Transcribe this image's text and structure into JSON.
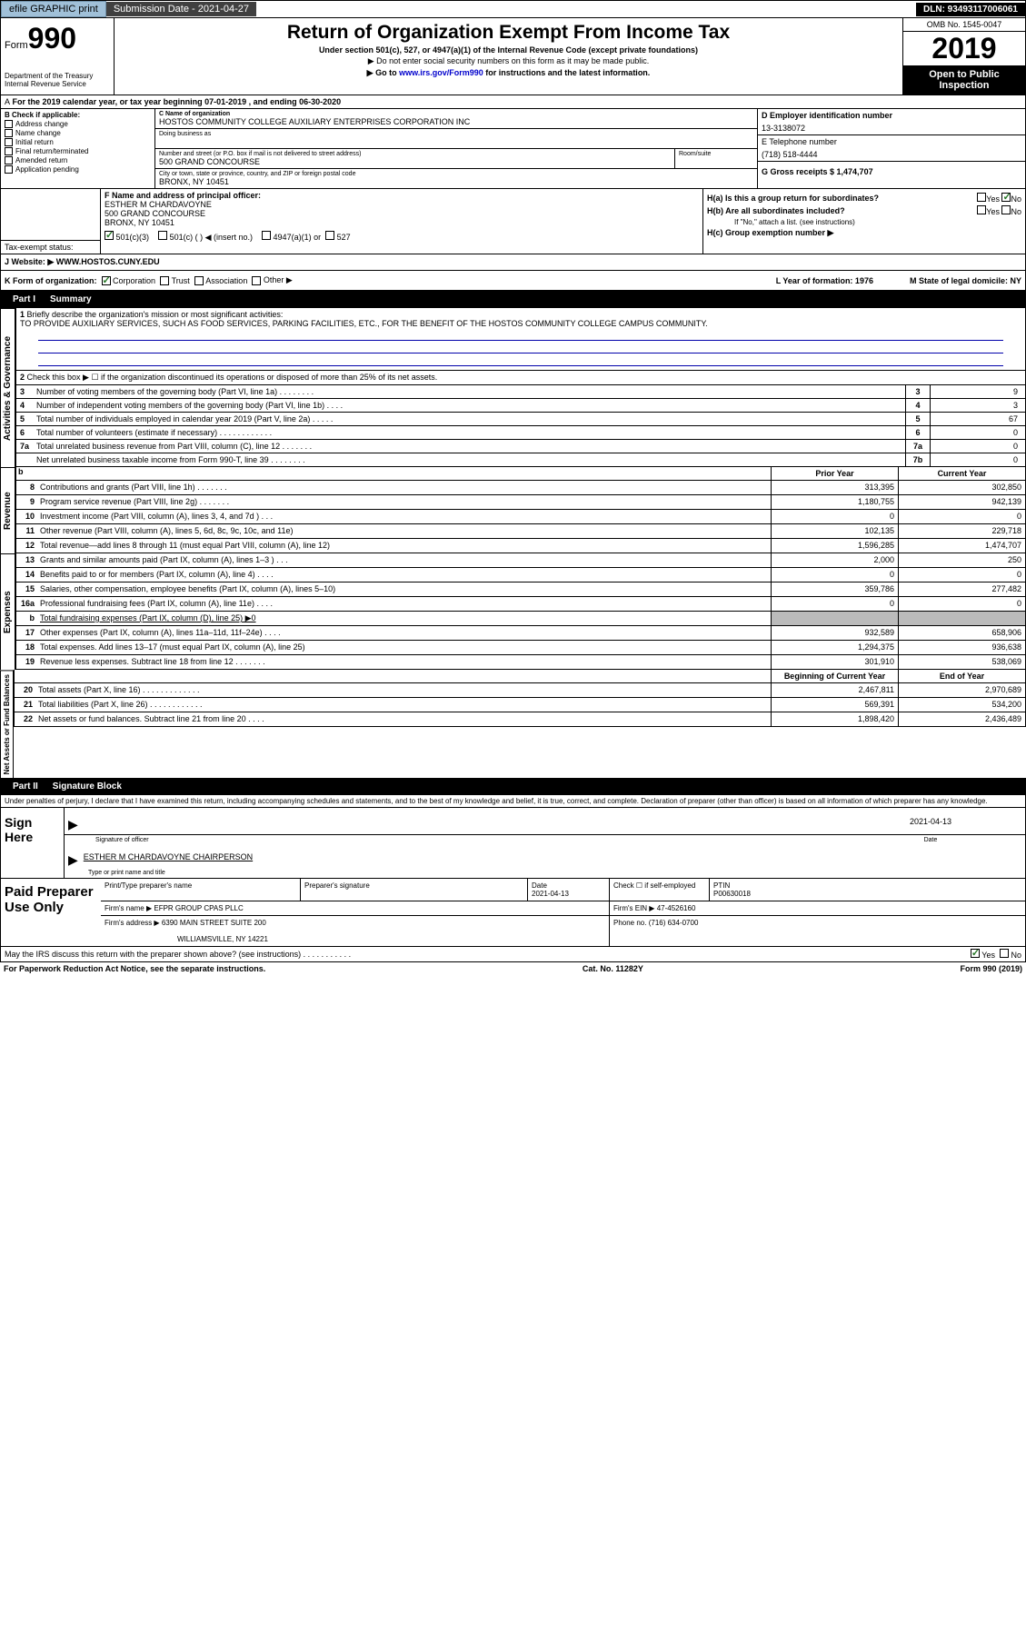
{
  "top_bar": {
    "efile": "efile GRAPHIC print",
    "submission": "Submission Date - 2021-04-27",
    "dln": "DLN: 93493117006061"
  },
  "header": {
    "form_label": "Form",
    "form_num": "990",
    "dept": "Department of the Treasury\nInternal Revenue Service",
    "title": "Return of Organization Exempt From Income Tax",
    "sub1": "Under section 501(c), 527, or 4947(a)(1) of the Internal Revenue Code (except private foundations)",
    "sub2": "▶ Do not enter social security numbers on this form as it may be made public.",
    "sub3_pre": "▶ Go to ",
    "sub3_link": "www.irs.gov/Form990",
    "sub3_post": " for instructions and the latest information.",
    "omb": "OMB No. 1545-0047",
    "year": "2019",
    "open": "Open to Public Inspection"
  },
  "dates": "For the 2019 calendar year, or tax year beginning 07-01-2019    , and ending 06-30-2020",
  "section_b": {
    "title": "B Check if applicable:",
    "items": [
      "Address change",
      "Name change",
      "Initial return",
      "Final return/terminated",
      "Amended return",
      "Application pending"
    ]
  },
  "section_c": {
    "name_lbl": "C Name of organization",
    "name": "HOSTOS COMMUNITY COLLEGE AUXILIARY ENTERPRISES CORPORATION INC",
    "dba_lbl": "Doing business as",
    "addr_lbl": "Number and street (or P.O. box if mail is not delivered to street address)",
    "room_lbl": "Room/suite",
    "addr": "500 GRAND CONCOURSE",
    "city_lbl": "City or town, state or province, country, and ZIP or foreign postal code",
    "city": "BRONX, NY  10451"
  },
  "section_d": {
    "ein_lbl": "D Employer identification number",
    "ein": "13-3138072",
    "tel_lbl": "E Telephone number",
    "tel": "(718) 518-4444",
    "gross_lbl": "G Gross receipts $ 1,474,707"
  },
  "section_f": {
    "lbl": "F  Name and address of principal officer:",
    "name": "ESTHER M CHARDAVOYNE",
    "addr": "500 GRAND CONCOURSE",
    "city": "BRONX, NY  10451"
  },
  "section_h": {
    "ha": "H(a)  Is this a group return for subordinates?",
    "hb": "H(b)  Are all subordinates included?",
    "hb_note": "If \"No,\" attach a list. (see instructions)",
    "hc": "H(c)  Group exemption number ▶",
    "yes": "Yes",
    "no": "No"
  },
  "tax_exempt": {
    "lbl": "Tax-exempt status:",
    "opt1": "501(c)(3)",
    "opt2": "501(c) (  ) ◀ (insert no.)",
    "opt3": "4947(a)(1) or",
    "opt4": "527"
  },
  "section_j": {
    "lbl": "J   Website: ▶",
    "val": "WWW.HOSTOS.CUNY.EDU"
  },
  "section_k": {
    "lbl": "K Form of organization:",
    "opts": [
      "Corporation",
      "Trust",
      "Association",
      "Other ▶"
    ],
    "l_lbl": "L Year of formation: 1976",
    "m_lbl": "M State of legal domicile: NY"
  },
  "part1": {
    "hdr": "Part I",
    "title": "Summary",
    "side1": "Activities & Governance",
    "side2": "Revenue",
    "side3": "Expenses",
    "side4": "Net Assets or Fund Balances",
    "q1": "Briefly describe the organization's mission or most significant activities:",
    "q1_ans": "TO PROVIDE AUXILIARY SERVICES, SUCH AS FOOD SERVICES, PARKING FACILITIES, ETC., FOR THE BENEFIT OF THE HOSTOS COMMUNITY COLLEGE CAMPUS COMMUNITY.",
    "q2": "Check this box ▶ ☐  if the organization discontinued its operations or disposed of more than 25% of its net assets.",
    "rows": [
      {
        "n": "3",
        "t": "Number of voting members of the governing body (Part VI, line 1a)   .    .    .    .    .    .    .    .",
        "b": "3",
        "v": "9"
      },
      {
        "n": "4",
        "t": "Number of independent voting members of the governing body (Part VI, line 1b)   .    .    .    .",
        "b": "4",
        "v": "3"
      },
      {
        "n": "5",
        "t": "Total number of individuals employed in calendar year 2019 (Part V, line 2a)   .    .    .    .    .",
        "b": "5",
        "v": "67"
      },
      {
        "n": "6",
        "t": "Total number of volunteers (estimate if necessary)    .    .    .    .    .    .    .    .    .    .    .    .",
        "b": "6",
        "v": "0"
      },
      {
        "n": "7a",
        "t": "Total unrelated business revenue from Part VIII, column (C), line 12   .    .    .    .    .    .    .",
        "b": "7a",
        "v": "0"
      },
      {
        "n": "",
        "t": "Net unrelated business taxable income from Form 990-T, line 39   .    .    .    .    .    .    .    .",
        "b": "7b",
        "v": "0"
      }
    ],
    "py_hdr": "Prior Year",
    "cy_hdr": "Current Year",
    "rev_rows": [
      {
        "n": "8",
        "t": "Contributions and grants (Part VIII, line 1h)   .    .    .    .    .    .    .",
        "py": "313,395",
        "cy": "302,850"
      },
      {
        "n": "9",
        "t": "Program service revenue (Part VIII, line 2g)   .    .    .    .    .    .    .",
        "py": "1,180,755",
        "cy": "942,139"
      },
      {
        "n": "10",
        "t": "Investment income (Part VIII, column (A), lines 3, 4, and 7d )   .    .    .",
        "py": "0",
        "cy": "0"
      },
      {
        "n": "11",
        "t": "Other revenue (Part VIII, column (A), lines 5, 6d, 8c, 9c, 10c, and 11e)",
        "py": "102,135",
        "cy": "229,718"
      },
      {
        "n": "12",
        "t": "Total revenue—add lines 8 through 11 (must equal Part VIII, column (A), line 12)",
        "py": "1,596,285",
        "cy": "1,474,707"
      }
    ],
    "exp_rows": [
      {
        "n": "13",
        "t": "Grants and similar amounts paid (Part IX, column (A), lines 1–3 )  .    .    .",
        "py": "2,000",
        "cy": "250"
      },
      {
        "n": "14",
        "t": "Benefits paid to or for members (Part IX, column (A), line 4)   .    .    .    .",
        "py": "0",
        "cy": "0"
      },
      {
        "n": "15",
        "t": "Salaries, other compensation, employee benefits (Part IX, column (A), lines 5–10)",
        "py": "359,786",
        "cy": "277,482"
      },
      {
        "n": "16a",
        "t": "Professional fundraising fees (Part IX, column (A), line 11e)   .    .    .    .",
        "py": "0",
        "cy": "0"
      },
      {
        "n": "b",
        "t": "Total fundraising expenses (Part IX, column (D), line 25) ▶0",
        "py": "",
        "cy": "",
        "shade": true
      },
      {
        "n": "17",
        "t": "Other expenses (Part IX, column (A), lines 11a–11d, 11f–24e)   .    .    .    .",
        "py": "932,589",
        "cy": "658,906"
      },
      {
        "n": "18",
        "t": "Total expenses. Add lines 13–17 (must equal Part IX, column (A), line 25)",
        "py": "1,294,375",
        "cy": "936,638"
      },
      {
        "n": "19",
        "t": "Revenue less expenses. Subtract line 18 from line 12  .    .    .    .    .    .    .",
        "py": "301,910",
        "cy": "538,069"
      }
    ],
    "na_hdr_py": "Beginning of Current Year",
    "na_hdr_cy": "End of Year",
    "na_rows": [
      {
        "n": "20",
        "t": "Total assets (Part X, line 16)  .    .    .    .    .    .    .    .    .    .    .    .    .",
        "py": "2,467,811",
        "cy": "2,970,689"
      },
      {
        "n": "21",
        "t": "Total liabilities (Part X, line 26)  .    .    .    .    .    .    .    .    .    .    .    .",
        "py": "569,391",
        "cy": "534,200"
      },
      {
        "n": "22",
        "t": "Net assets or fund balances. Subtract line 21 from line 20   .    .    .    .",
        "py": "1,898,420",
        "cy": "2,436,489"
      }
    ]
  },
  "part2": {
    "hdr": "Part II",
    "title": "Signature Block",
    "decl": "Under penalties of perjury, I declare that I have examined this return, including accompanying schedules and statements, and to the best of my knowledge and belief, it is true, correct, and complete. Declaration of preparer (other than officer) is based on all information of which preparer has any knowledge.",
    "sign_here": "Sign Here",
    "sig_officer": "Signature of officer",
    "sig_date": "2021-04-13",
    "date_lbl": "Date",
    "officer_name": "ESTHER M CHARDAVOYNE  CHAIRPERSON",
    "type_lbl": "Type or print name and title",
    "paid": "Paid Preparer Use Only",
    "prep_name_lbl": "Print/Type preparer's name",
    "prep_sig_lbl": "Preparer's signature",
    "prep_date": "2021-04-13",
    "check_lbl": "Check ☐ if self-employed",
    "ptin_lbl": "PTIN",
    "ptin": "P00630018",
    "firm_name_lbl": "Firm's name    ▶",
    "firm_name": "EFPR GROUP CPAS PLLC",
    "firm_ein_lbl": "Firm's EIN ▶",
    "firm_ein": "47-4526160",
    "firm_addr_lbl": "Firm's address ▶",
    "firm_addr1": "6390 MAIN STREET SUITE 200",
    "firm_addr2": "WILLIAMSVILLE, NY  14221",
    "phone_lbl": "Phone no. (716) 634-0700",
    "discuss": "May the IRS discuss this return with the preparer shown above? (see instructions)   .    .    .    .    .    .    .    .    .    .    ."
  },
  "footer": {
    "paperwork": "For Paperwork Reduction Act Notice, see the separate instructions.",
    "cat": "Cat. No. 11282Y",
    "form": "Form 990 (2019)"
  }
}
